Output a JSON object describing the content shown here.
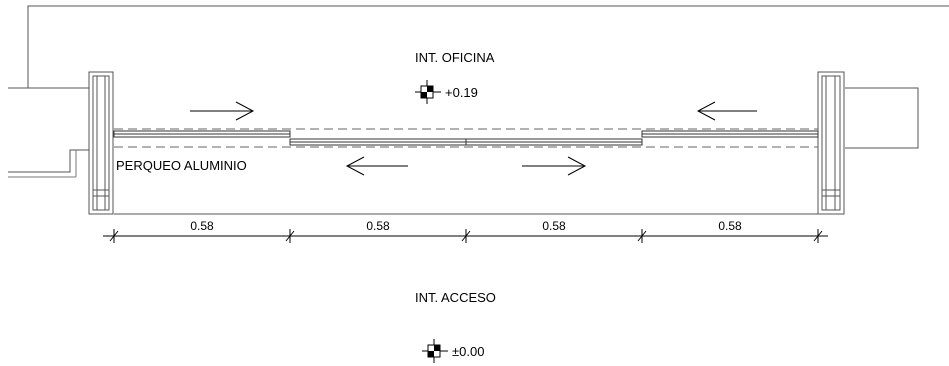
{
  "labels": {
    "top_room": "INT. OFICINA",
    "top_level": "+0.19",
    "bottom_room": "INT. ACCESO",
    "bottom_level": "±0.00",
    "material_note": "PERQUEO ALUMINIO"
  },
  "dimensions": [
    "0.58",
    "0.58",
    "0.58",
    "0.58"
  ],
  "level_markers": [
    "+0.19",
    "±0.00"
  ],
  "arrows": [
    {
      "direction": "right",
      "row": "upper"
    },
    {
      "direction": "left",
      "row": "upper"
    },
    {
      "direction": "left",
      "row": "lower"
    },
    {
      "direction": "right",
      "row": "lower"
    }
  ]
}
